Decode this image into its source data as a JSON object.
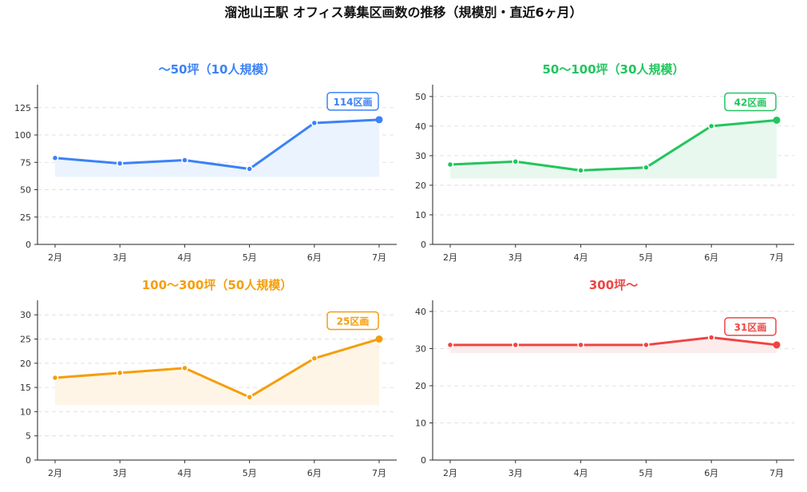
{
  "title": "溜池山王駅 オフィス募集区画数の推移（規模別・直近6ヶ月）",
  "chart_data": [
    {
      "type": "line",
      "title": "〜50坪（10人規模）",
      "color": "#3b82f6",
      "categories": [
        "2月",
        "3月",
        "4月",
        "5月",
        "6月",
        "7月"
      ],
      "values": [
        79,
        74,
        77,
        69,
        111,
        114
      ],
      "ylim": [
        0,
        146
      ],
      "yticks": [
        "0",
        "25",
        "50",
        "75",
        "100",
        "125"
      ],
      "annotation": "114区画",
      "grid": true
    },
    {
      "type": "line",
      "title": "50〜100坪（30人規模）",
      "color": "#22c55e",
      "categories": [
        "2月",
        "3月",
        "4月",
        "5月",
        "6月",
        "7月"
      ],
      "values": [
        27,
        28,
        25,
        26,
        40,
        42
      ],
      "ylim": [
        0,
        54
      ],
      "yticks": [
        "0",
        "10",
        "20",
        "30",
        "40",
        "50"
      ],
      "annotation": "42区画",
      "grid": true
    },
    {
      "type": "line",
      "title": "100〜300坪（50人規模）",
      "color": "#f59e0b",
      "categories": [
        "2月",
        "3月",
        "4月",
        "5月",
        "6月",
        "7月"
      ],
      "values": [
        17,
        18,
        19,
        13,
        21,
        25
      ],
      "ylim": [
        0,
        33
      ],
      "yticks": [
        "0",
        "5",
        "10",
        "15",
        "20",
        "25",
        "30"
      ],
      "annotation": "25区画",
      "grid": true
    },
    {
      "type": "line",
      "title": "300坪〜",
      "color": "#ef4444",
      "categories": [
        "2月",
        "3月",
        "4月",
        "5月",
        "6月",
        "7月"
      ],
      "values": [
        31,
        31,
        31,
        31,
        33,
        31
      ],
      "ylim": [
        0,
        43
      ],
      "yticks": [
        "0",
        "10",
        "20",
        "30",
        "40"
      ],
      "annotation": "31区画",
      "grid": true
    }
  ]
}
